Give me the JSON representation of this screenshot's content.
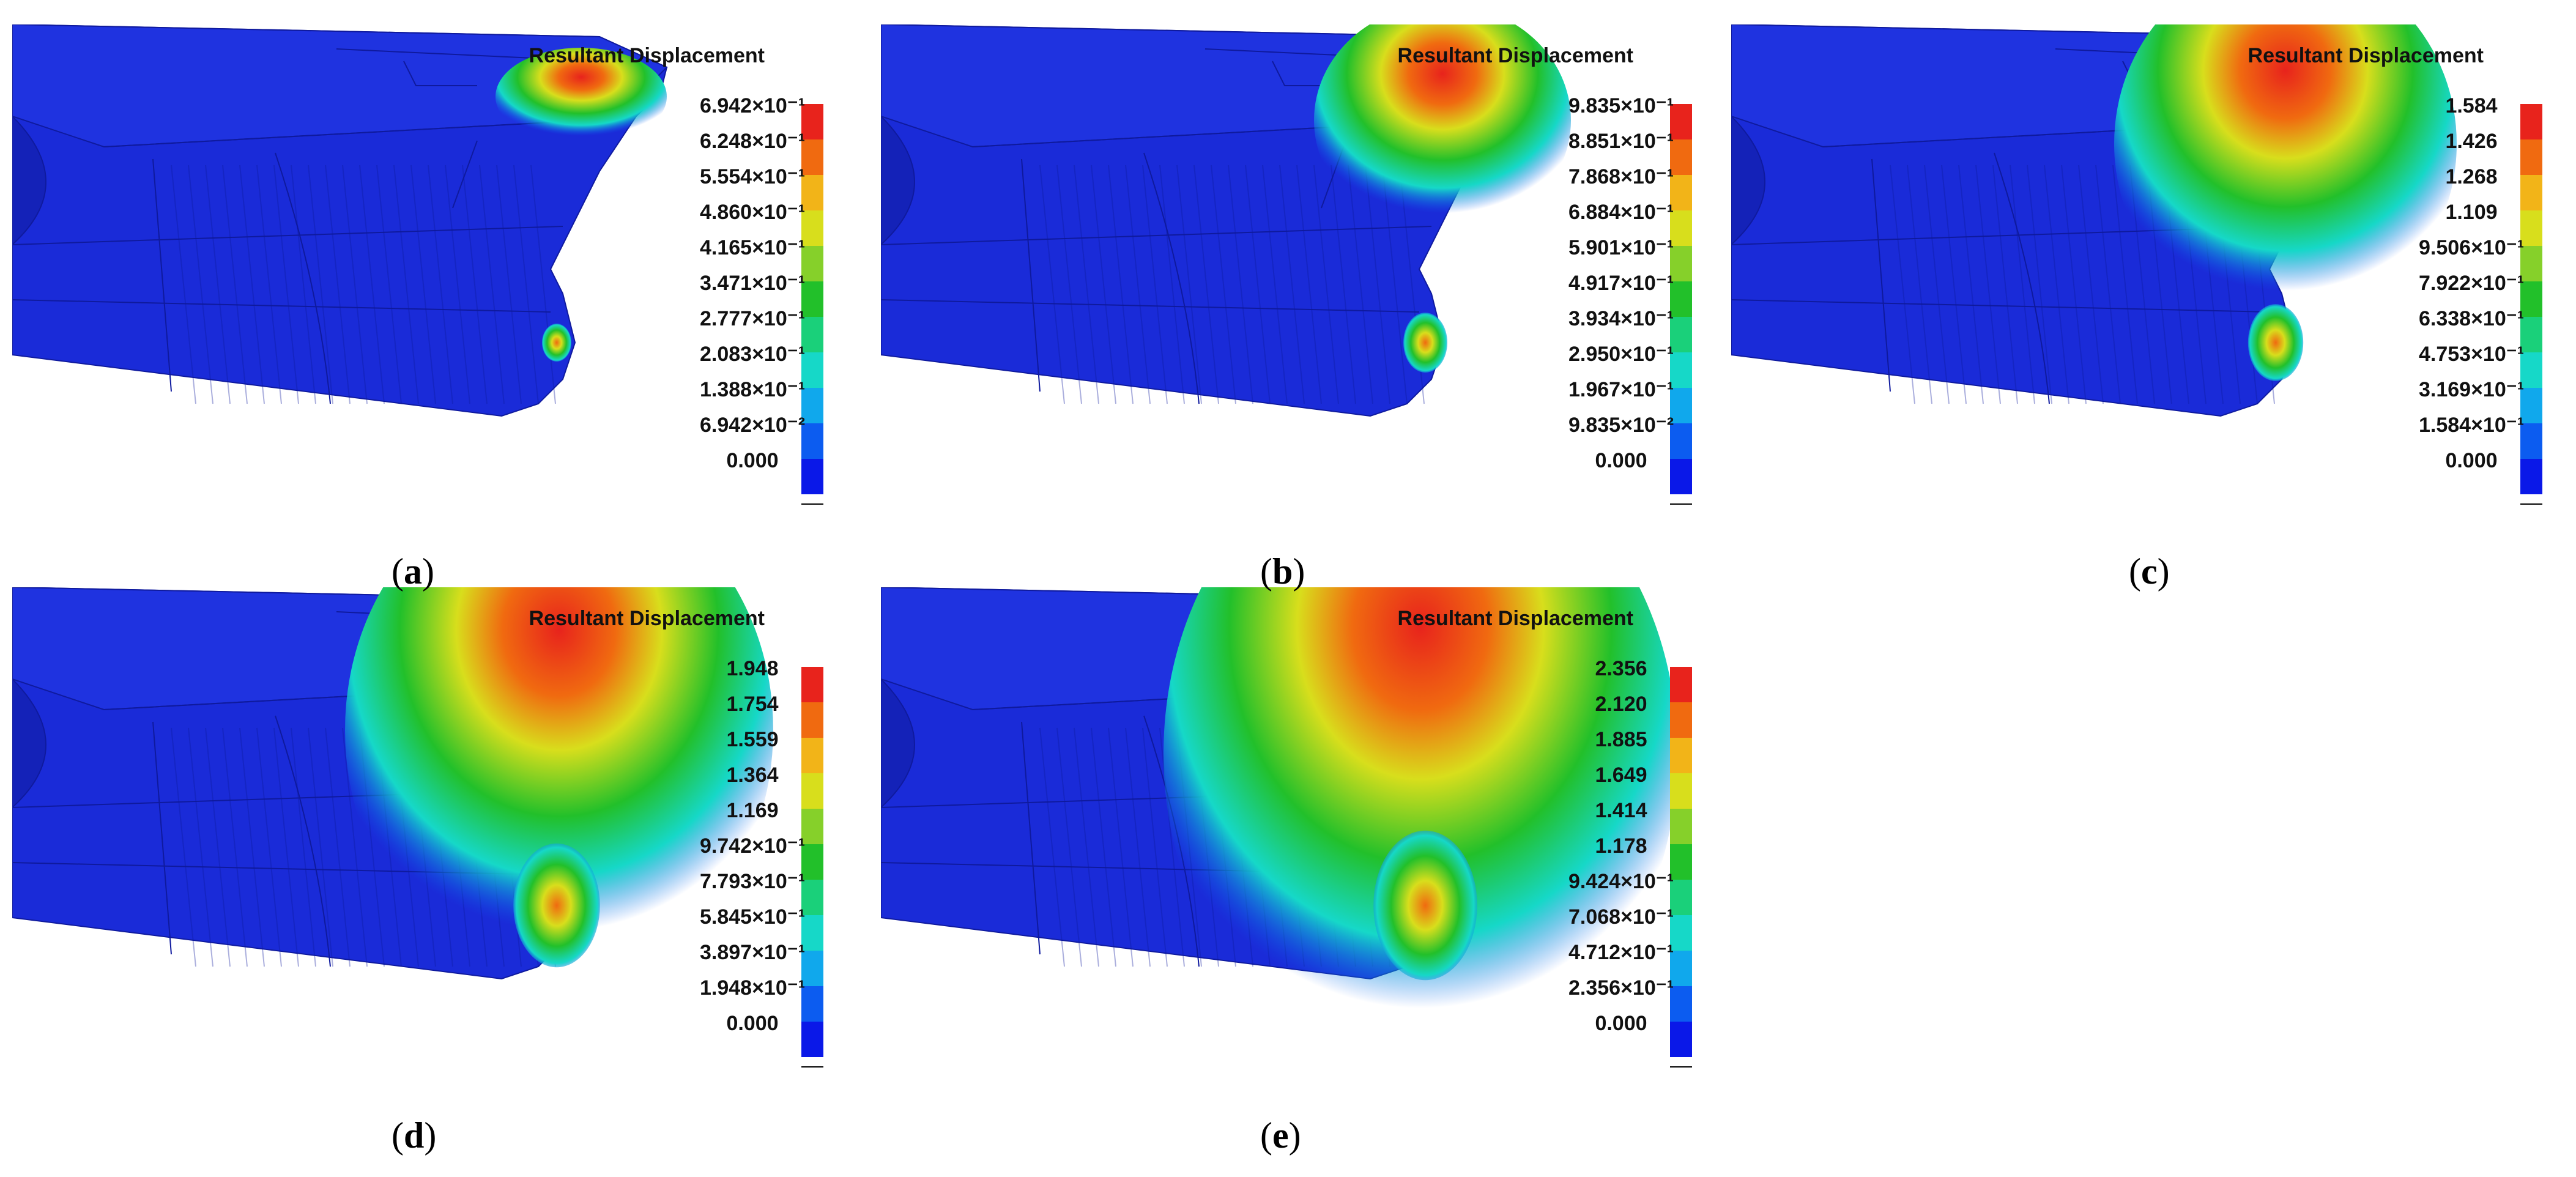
{
  "panels": [
    {
      "id": "a",
      "caption_letter": "a",
      "legend_title": "Resultant Displacement",
      "legend_labels": [
        "6.942×10⁻¹",
        "6.248×10⁻¹",
        "5.554×10⁻¹",
        "4.860×10⁻¹",
        "4.165×10⁻¹",
        "3.471×10⁻¹",
        "2.777×10⁻¹",
        "2.083×10⁻¹",
        "1.388×10⁻¹",
        "6.942×10⁻²",
        "0.000"
      ],
      "hotspot_upper_level": 1.0,
      "hotspot_lower_level": 0.35
    },
    {
      "id": "b",
      "caption_letter": "b",
      "legend_title": "Resultant Displacement",
      "legend_labels": [
        "9.835×10⁻¹",
        "8.851×10⁻¹",
        "7.868×10⁻¹",
        "6.884×10⁻¹",
        "5.901×10⁻¹",
        "4.917×10⁻¹",
        "3.934×10⁻¹",
        "2.950×10⁻¹",
        "1.967×10⁻¹",
        "9.835×10⁻²",
        "0.000"
      ],
      "hotspot_upper_level": 1.0,
      "hotspot_lower_level": 0.5
    },
    {
      "id": "c",
      "caption_letter": "c",
      "legend_title": "Resultant Displacement",
      "legend_labels": [
        "1.584",
        "1.426",
        "1.268",
        "1.109",
        "9.506×10⁻¹",
        "7.922×10⁻¹",
        "6.338×10⁻¹",
        "4.753×10⁻¹",
        "3.169×10⁻¹",
        "1.584×10⁻¹",
        "0.000"
      ],
      "hotspot_upper_level": 1.0,
      "hotspot_lower_level": 0.55
    },
    {
      "id": "d",
      "caption_letter": "d",
      "legend_title": "Resultant Displacement",
      "legend_labels": [
        "1.948",
        "1.754",
        "1.559",
        "1.364",
        "1.169",
        "9.742×10⁻¹",
        "7.793×10⁻¹",
        "5.845×10⁻¹",
        "3.897×10⁻¹",
        "1.948×10⁻¹",
        "0.000"
      ],
      "hotspot_upper_level": 1.0,
      "hotspot_lower_level": 0.8
    },
    {
      "id": "e",
      "caption_letter": "e",
      "legend_title": "Resultant Displacement",
      "legend_labels": [
        "2.356",
        "2.120",
        "1.885",
        "1.649",
        "1.414",
        "1.178",
        "9.424×10⁻¹",
        "7.068×10⁻¹",
        "4.712×10⁻¹",
        "2.356×10⁻¹",
        "0.000"
      ],
      "hotspot_upper_level": 1.0,
      "hotspot_lower_level": 0.85
    }
  ],
  "legend_colors": [
    "#e8231c",
    "#f06a10",
    "#f2b418",
    "#d8de1c",
    "#86d02a",
    "#22c02a",
    "#1ad07a",
    "#16d8c8",
    "#10a8ec",
    "#0c5cf0",
    "#0a18e8"
  ],
  "mesh_color": "#0f1a9e"
}
